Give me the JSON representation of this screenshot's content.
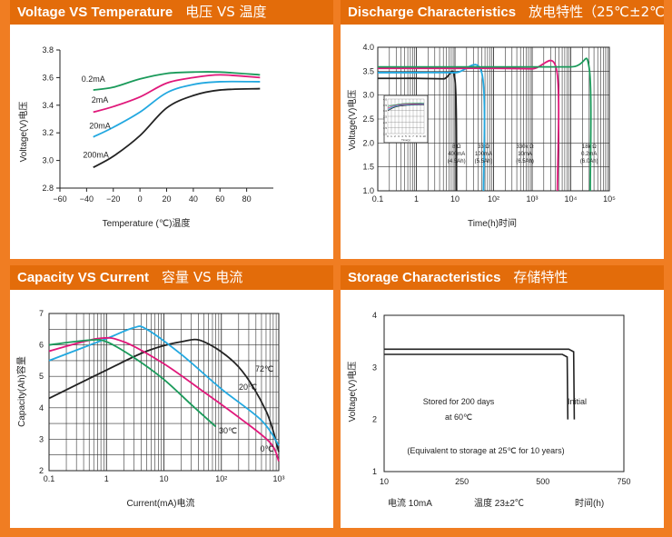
{
  "panels": {
    "voltage_temperature": {
      "title_en": "Voltage VS Temperature",
      "title_zh": "电压 VS 温度"
    },
    "discharge": {
      "title_en": "Discharge Characteristics",
      "title_zh": "放电特性（25℃±2℃）"
    },
    "capacity_current": {
      "title_en": "Capacity VS Current",
      "title_zh": "容量 VS 电流"
    },
    "storage": {
      "title_en": "Storage Characteristics",
      "title_zh": "存储特性"
    }
  },
  "colors": {
    "background": "#f07d22",
    "header": "#e36c0a",
    "green": "#1a9a5a",
    "magenta": "#e0187a",
    "cyan": "#22a8e0",
    "black": "#222222"
  },
  "chart_data": [
    {
      "type": "line",
      "xlabel": "Temperature (℃)温度",
      "ylabel": "Voltage(V)电压",
      "xlim": [
        -60,
        100
      ],
      "ylim": [
        2.8,
        3.8
      ],
      "xticks": [
        "−60",
        "−40",
        "−20",
        "0",
        "20",
        "40",
        "60",
        "80"
      ],
      "yticks": [
        "2.8",
        "3.0",
        "3.2",
        "3.4",
        "3.6",
        "3.8"
      ],
      "series": [
        {
          "name": "0.2mA",
          "color": "green",
          "x": [
            -35,
            -20,
            0,
            20,
            40,
            60,
            90
          ],
          "y": [
            3.51,
            3.53,
            3.59,
            3.63,
            3.64,
            3.64,
            3.62
          ]
        },
        {
          "name": "2mA",
          "color": "magenta",
          "x": [
            -35,
            -20,
            0,
            20,
            40,
            60,
            90
          ],
          "y": [
            3.35,
            3.39,
            3.46,
            3.56,
            3.6,
            3.62,
            3.6
          ]
        },
        {
          "name": "20mA",
          "color": "cyan",
          "x": [
            -35,
            -20,
            0,
            20,
            40,
            60,
            90
          ],
          "y": [
            3.17,
            3.24,
            3.35,
            3.49,
            3.55,
            3.57,
            3.57
          ]
        },
        {
          "name": "200mA",
          "color": "black",
          "x": [
            -35,
            -20,
            0,
            20,
            40,
            60,
            90
          ],
          "y": [
            2.95,
            3.03,
            3.18,
            3.38,
            3.47,
            3.51,
            3.52
          ]
        }
      ]
    },
    {
      "type": "line",
      "xlabel": "Time(h)时间",
      "ylabel": "Voltage(V)电压",
      "xscale": "log",
      "xlim": [
        0.1,
        100000
      ],
      "ylim": [
        1.0,
        4.0
      ],
      "xticks": [
        "0.1",
        "1",
        "10",
        "10²",
        "10³",
        "10⁴",
        "10⁵"
      ],
      "yticks": [
        "1.0",
        "1.5",
        "2.0",
        "2.5",
        "3.0",
        "3.5",
        "4.0"
      ],
      "annotations": [
        {
          "lines": [
            "8 Ω",
            "400mA",
            "(4.5Ah)"
          ],
          "x": 11
        },
        {
          "lines": [
            "33 Ω",
            "100mA",
            "(5.5Ah)"
          ],
          "x": 55
        },
        {
          "lines": [
            "330k Ω",
            "10mA",
            "(6.5Ah)"
          ],
          "x": 650
        },
        {
          "lines": [
            "18k Ω",
            "0.2mA",
            "(6.0Ah)"
          ],
          "x": 30000
        }
      ],
      "series": [
        {
          "color": "black",
          "x": [
            0.1,
            0.5,
            1,
            5,
            10,
            11
          ],
          "y": [
            3.35,
            3.35,
            3.35,
            3.34,
            3.32,
            1.0
          ]
        },
        {
          "color": "cyan",
          "x": [
            0.1,
            1,
            10,
            50,
            55
          ],
          "y": [
            3.47,
            3.47,
            3.47,
            3.45,
            1.0
          ]
        },
        {
          "color": "magenta",
          "x": [
            0.1,
            10,
            100,
            1000,
            4300,
            4500
          ],
          "y": [
            3.56,
            3.56,
            3.56,
            3.55,
            3.53,
            1.0
          ]
        },
        {
          "color": "green",
          "x": [
            0.1,
            100,
            10000,
            30000,
            32000
          ],
          "y": [
            3.59,
            3.59,
            3.59,
            3.57,
            1.0
          ]
        }
      ],
      "inset": {
        "yticks": [
          "4.0",
          "3.5",
          "3.0",
          "2.5",
          "2.0",
          "1.5",
          "1.0"
        ],
        "xticks": [
          "0",
          "1",
          "2",
          "3",
          "4",
          "5",
          "6",
          "7",
          "8",
          "9",
          "10"
        ],
        "xlabel": "Time(y)"
      }
    },
    {
      "type": "line",
      "xlabel": "Current(mA)电流",
      "ylabel": "Capacity(Ah)容量",
      "xscale": "log",
      "xlim": [
        0.1,
        1000
      ],
      "ylim": [
        2,
        7
      ],
      "xticks": [
        "0.1",
        "1",
        "10",
        "10²",
        "10³"
      ],
      "yticks": [
        "2",
        "3",
        "4",
        "5",
        "6",
        "7"
      ],
      "series": [
        {
          "name": "72℃",
          "color": "black",
          "x": [
            0.1,
            1,
            5,
            20,
            50,
            200,
            600,
            1000
          ],
          "y": [
            4.3,
            5.2,
            5.8,
            6.1,
            6.1,
            5.3,
            3.9,
            2.6
          ]
        },
        {
          "name": "20℃",
          "color": "cyan",
          "x": [
            0.1,
            1,
            3,
            5,
            20,
            100,
            500,
            1000
          ],
          "y": [
            5.5,
            6.2,
            6.55,
            6.5,
            5.7,
            4.6,
            3.6,
            2.8
          ]
        },
        {
          "name": "0℃",
          "color": "magenta",
          "x": [
            0.1,
            0.7,
            2,
            10,
            50,
            200,
            700,
            1000
          ],
          "y": [
            5.8,
            6.2,
            6.1,
            5.4,
            4.5,
            3.7,
            2.9,
            2.3
          ]
        },
        {
          "name": "30℃",
          "color": "green",
          "x": [
            0.1,
            0.5,
            1,
            3,
            10,
            30,
            80
          ],
          "y": [
            6.0,
            6.15,
            6.1,
            5.6,
            4.9,
            4.1,
            3.4
          ]
        }
      ]
    },
    {
      "type": "line",
      "xlabel": "",
      "ylabel": "Voltage(V)电压",
      "xlim": [
        10,
        750
      ],
      "ylim": [
        1,
        4
      ],
      "xticks": [
        "10",
        "250",
        "500",
        "750"
      ],
      "yticks": [
        "1",
        "2",
        "3",
        "4"
      ],
      "series": [
        {
          "name": "Initial",
          "color": "black",
          "x": [
            10,
            580,
            595,
            597
          ],
          "y": [
            3.35,
            3.35,
            3.3,
            2.0
          ]
        },
        {
          "name": "Stored",
          "color": "black",
          "x": [
            10,
            560,
            575,
            577
          ],
          "y": [
            3.25,
            3.25,
            3.2,
            2.0
          ]
        }
      ],
      "annotations": {
        "stored_line1": "Stored for 200 days",
        "stored_line2": "at 60℃",
        "initial": "Initial",
        "equivalent": "(Equivalent to storage at 25℃ for 10 years)"
      },
      "footer": {
        "current": "电流 10mA",
        "temperature": "温度 23±2℃",
        "time": "时间(h)"
      }
    }
  ]
}
